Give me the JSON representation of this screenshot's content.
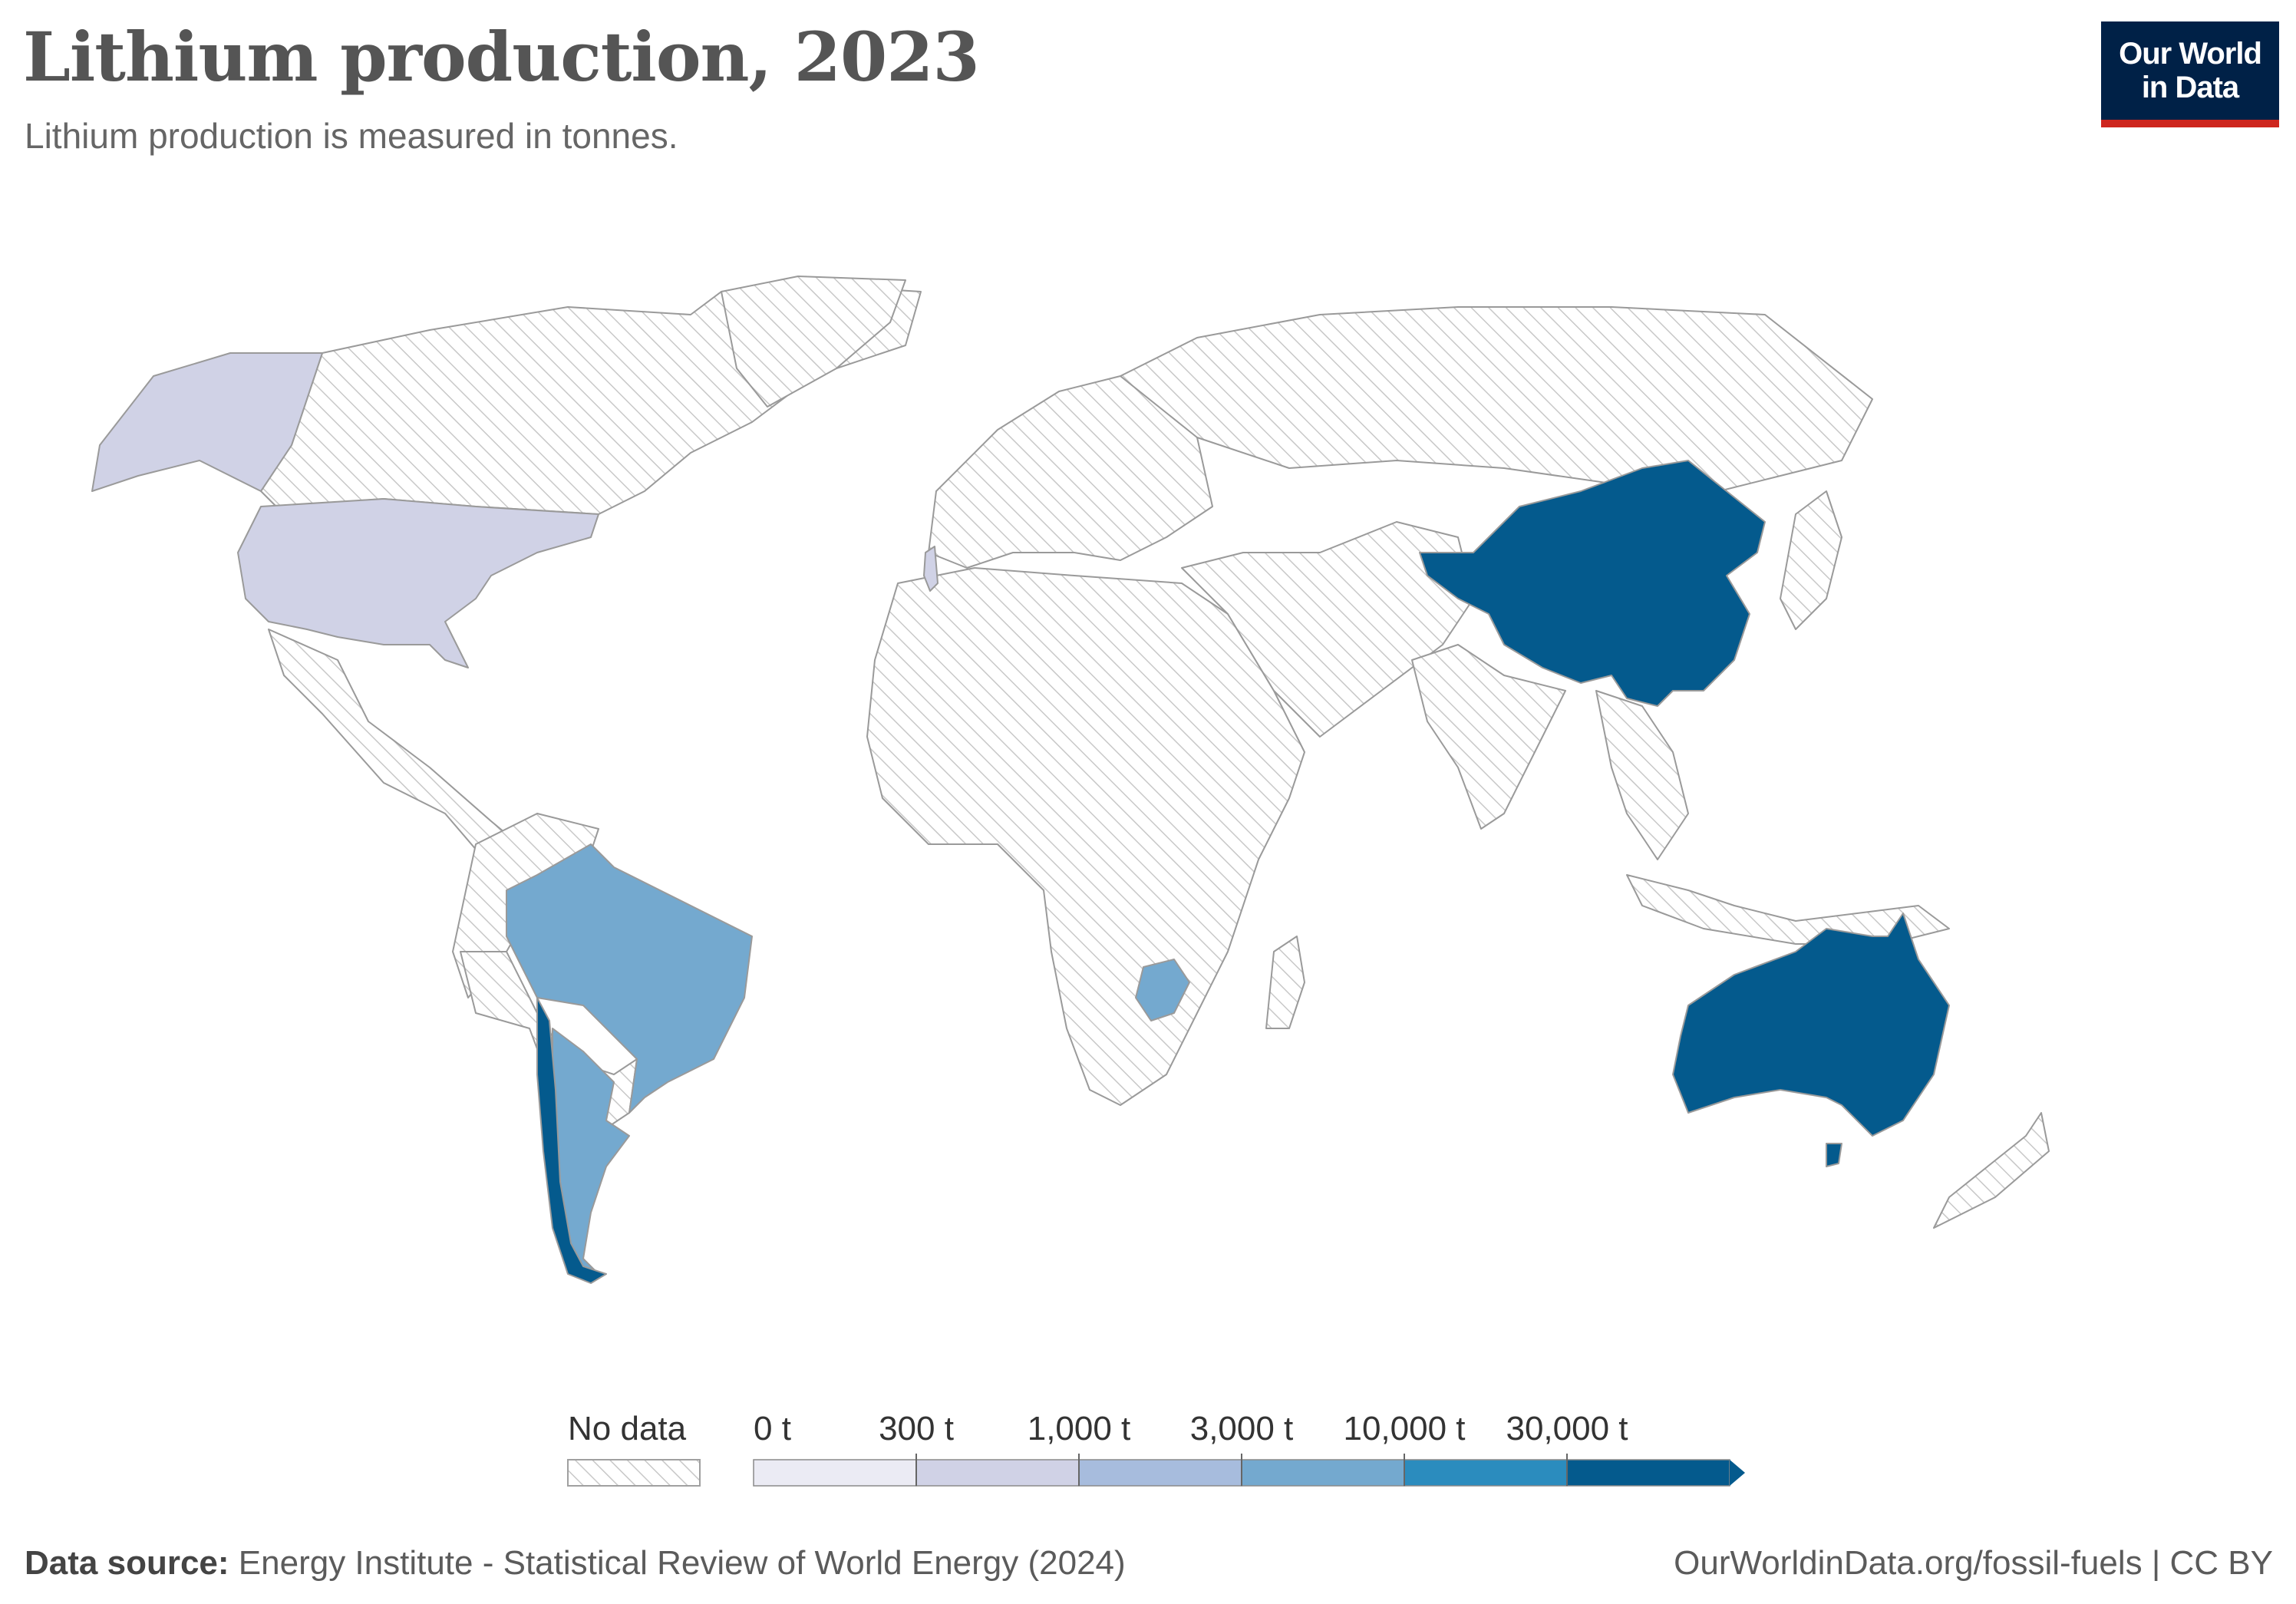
{
  "header": {
    "title": "Lithium production, 2023",
    "subtitle": "Lithium production is measured in tonnes."
  },
  "logo": {
    "line1": "Our World",
    "line2": "in Data",
    "bg_color": "#002147",
    "accent_color": "#ce261e"
  },
  "map": {
    "type": "choropleth",
    "year": "2023",
    "unit": "tonnes",
    "no_data_pattern": "diagonal-hatch",
    "highlighted_countries": [
      {
        "name": "China",
        "bin": "30,000 t"
      },
      {
        "name": "Australia",
        "bin": "30,000 t"
      },
      {
        "name": "Chile",
        "bin": "30,000 t"
      },
      {
        "name": "Argentina",
        "bin": "3,000 t"
      },
      {
        "name": "Brazil",
        "bin": "3,000 t"
      },
      {
        "name": "Zimbabwe",
        "bin": "3,000 t"
      },
      {
        "name": "United States",
        "bin": "300 t"
      },
      {
        "name": "Portugal",
        "bin": "300 t"
      }
    ]
  },
  "legend": {
    "no_data_label": "No data",
    "bins": [
      {
        "label": "0 t",
        "color": "#ebebf4"
      },
      {
        "label": "300 t",
        "color": "#d0d2e6"
      },
      {
        "label": "1,000 t",
        "color": "#a7bcdd"
      },
      {
        "label": "3,000 t",
        "color": "#74a9cf"
      },
      {
        "label": "10,000 t",
        "color": "#2b8cbe"
      },
      {
        "label": "30,000 t",
        "color": "#045a8d"
      }
    ]
  },
  "footer": {
    "source_label": "Data source:",
    "source_text": "Energy Institute - Statistical Review of World Energy (2024)",
    "url_text": "OurWorldinData.org/fossil-fuels | CC BY"
  }
}
